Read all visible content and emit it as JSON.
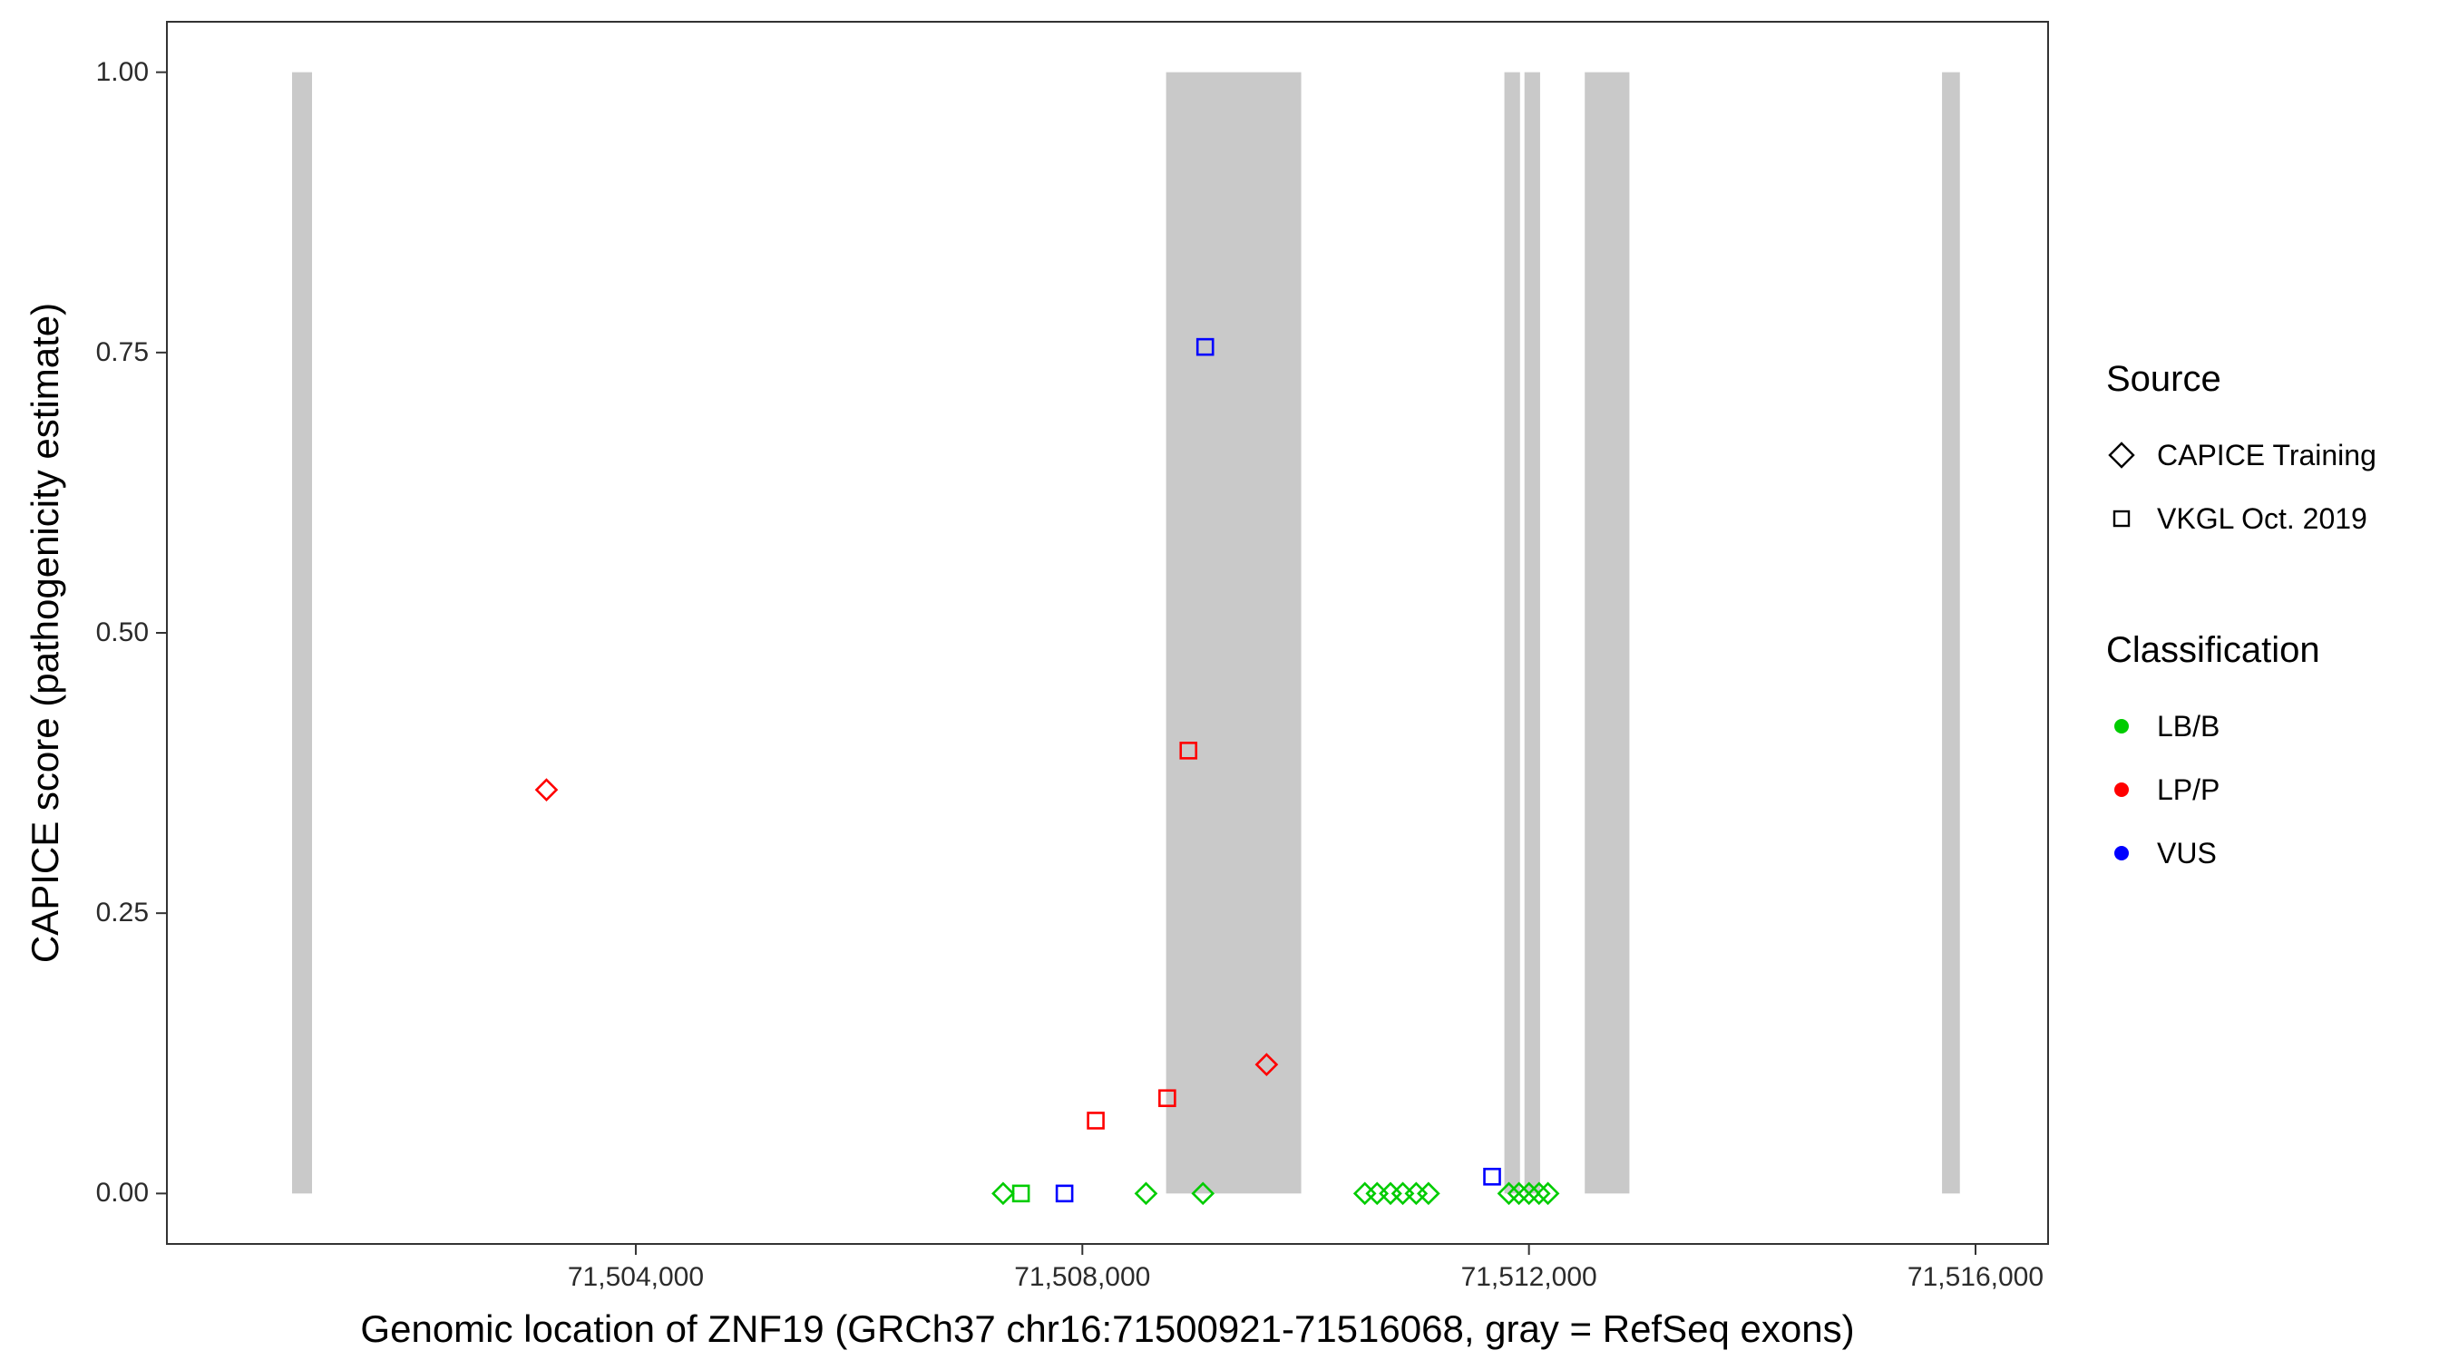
{
  "figure": {
    "background": "#FFFFFF",
    "panel_border_color": "#333333",
    "tick_color": "#333333"
  },
  "legend": {
    "source": {
      "title": "Source",
      "items": [
        {
          "label": "CAPICE Training",
          "shape": "diamond"
        },
        {
          "label": "VKGL Oct. 2019",
          "shape": "square"
        }
      ]
    },
    "classification": {
      "title": "Classification",
      "items": [
        {
          "label": "LB/B",
          "color_key": "LB/B"
        },
        {
          "label": "LP/P",
          "color_key": "LP/P"
        },
        {
          "label": "VUS",
          "color_key": "VUS"
        }
      ]
    }
  },
  "chart_data": {
    "type": "scatter",
    "title": "",
    "xlabel": "Genomic location of ZNF19 (GRCh37 chr16:71500921-71516068, gray = RefSeq exons)",
    "ylabel": "CAPICE score (pathogenicity estimate)",
    "xlim": [
      71499800,
      71516650
    ],
    "ylim": [
      -0.045,
      1.045
    ],
    "x_ticks": [
      71504000,
      71508000,
      71512000,
      71516000
    ],
    "x_tick_labels": [
      "71,504,000",
      "71,508,000",
      "71,512,000",
      "71,516,000"
    ],
    "y_ticks": [
      0,
      0.25,
      0.5,
      0.75,
      1
    ],
    "y_tick_labels": [
      "0.00",
      "0.25",
      "0.50",
      "0.75",
      "1.00"
    ],
    "grid": false,
    "legend_position": "right",
    "exon_color": "#C9C9C9",
    "exons": [
      [
        71500921,
        71501100
      ],
      [
        71508750,
        71509960
      ],
      [
        71511780,
        71511920
      ],
      [
        71511960,
        71512100
      ],
      [
        71512500,
        71512900
      ],
      [
        71515700,
        71515860
      ]
    ],
    "source_shapes": {
      "CAPICE Training": "diamond",
      "VKGL Oct. 2019": "square"
    },
    "classification_colors": {
      "LB/B": "#00CC00",
      "LP/P": "#FF0000",
      "VUS": "#0000FF"
    },
    "points": [
      {
        "x": 71503200,
        "y": 0.36,
        "source": "CAPICE Training",
        "classification": "LP/P"
      },
      {
        "x": 71507290,
        "y": 0.0,
        "source": "CAPICE Training",
        "classification": "LB/B"
      },
      {
        "x": 71507450,
        "y": 0.0,
        "source": "VKGL Oct. 2019",
        "classification": "LB/B"
      },
      {
        "x": 71507840,
        "y": 0.0,
        "source": "VKGL Oct. 2019",
        "classification": "VUS"
      },
      {
        "x": 71508120,
        "y": 0.065,
        "source": "VKGL Oct. 2019",
        "classification": "LP/P"
      },
      {
        "x": 71508570,
        "y": 0.0,
        "source": "CAPICE Training",
        "classification": "LB/B"
      },
      {
        "x": 71508760,
        "y": 0.085,
        "source": "VKGL Oct. 2019",
        "classification": "LP/P"
      },
      {
        "x": 71508950,
        "y": 0.395,
        "source": "VKGL Oct. 2019",
        "classification": "LP/P"
      },
      {
        "x": 71509100,
        "y": 0.755,
        "source": "VKGL Oct. 2019",
        "classification": "VUS"
      },
      {
        "x": 71509080,
        "y": 0.0,
        "source": "CAPICE Training",
        "classification": "LB/B"
      },
      {
        "x": 71509650,
        "y": 0.115,
        "source": "CAPICE Training",
        "classification": "LP/P"
      },
      {
        "x": 71510530,
        "y": 0.0,
        "source": "CAPICE Training",
        "classification": "LB/B"
      },
      {
        "x": 71510640,
        "y": 0.0,
        "source": "CAPICE Training",
        "classification": "LB/B"
      },
      {
        "x": 71510760,
        "y": 0.0,
        "source": "CAPICE Training",
        "classification": "LB/B"
      },
      {
        "x": 71510870,
        "y": 0.0,
        "source": "CAPICE Training",
        "classification": "LB/B"
      },
      {
        "x": 71510990,
        "y": 0.0,
        "source": "CAPICE Training",
        "classification": "LB/B"
      },
      {
        "x": 71511100,
        "y": 0.0,
        "source": "CAPICE Training",
        "classification": "LB/B"
      },
      {
        "x": 71511670,
        "y": 0.015,
        "source": "VKGL Oct. 2019",
        "classification": "VUS"
      },
      {
        "x": 71511820,
        "y": 0.0,
        "source": "CAPICE Training",
        "classification": "LB/B"
      },
      {
        "x": 71511910,
        "y": 0.0,
        "source": "CAPICE Training",
        "classification": "LB/B"
      },
      {
        "x": 71512000,
        "y": 0.0,
        "source": "CAPICE Training",
        "classification": "LB/B"
      },
      {
        "x": 71512090,
        "y": 0.0,
        "source": "CAPICE Training",
        "classification": "LB/B"
      },
      {
        "x": 71512170,
        "y": 0.0,
        "source": "CAPICE Training",
        "classification": "LB/B"
      }
    ]
  }
}
